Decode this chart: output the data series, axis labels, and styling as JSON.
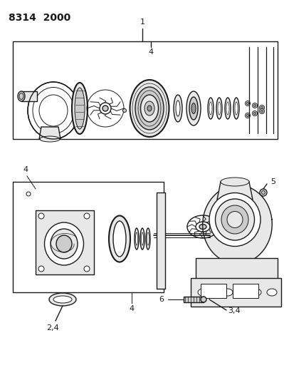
{
  "title_code": "8314  2000",
  "bg_color": "#ffffff",
  "line_color": "#1a1a1a",
  "figsize": [
    3.99,
    5.33
  ],
  "dpi": 100
}
